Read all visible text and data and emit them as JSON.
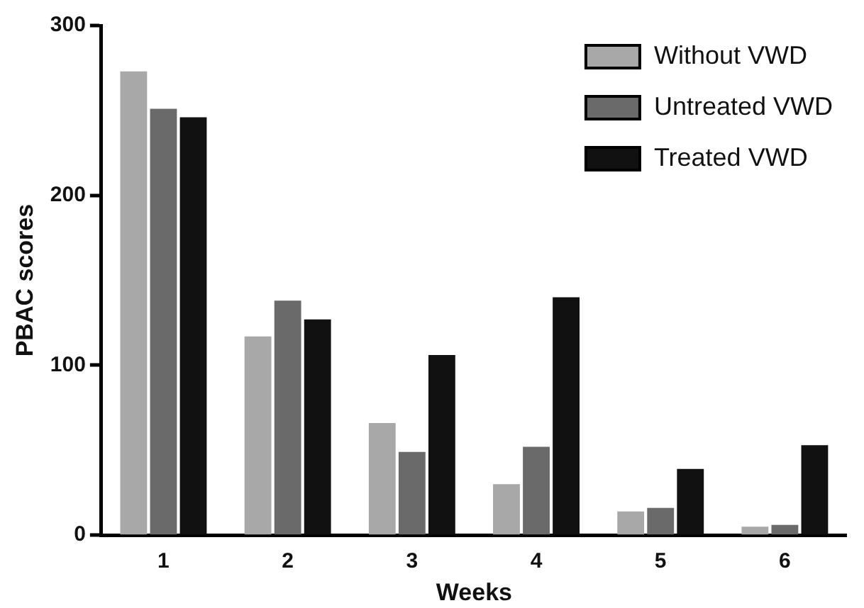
{
  "chart_data": {
    "type": "bar",
    "xlabel": "Weeks",
    "ylabel": "PBAC scores",
    "categories": [
      "1",
      "2",
      "3",
      "4",
      "5",
      "6"
    ],
    "series": [
      {
        "name": "Without VWD",
        "color": "#a8a8a8",
        "values": [
          273,
          117,
          66,
          30,
          14,
          5
        ]
      },
      {
        "name": "Untreated VWD",
        "color": "#6a6a6a",
        "values": [
          251,
          138,
          49,
          52,
          16,
          6
        ]
      },
      {
        "name": "Treated VWD",
        "color": "#111111",
        "values": [
          246,
          127,
          106,
          140,
          39,
          53
        ]
      }
    ],
    "ylim": [
      0,
      300
    ],
    "yticks": [
      0,
      100,
      200,
      300
    ],
    "grid": false,
    "legend": "top right"
  }
}
